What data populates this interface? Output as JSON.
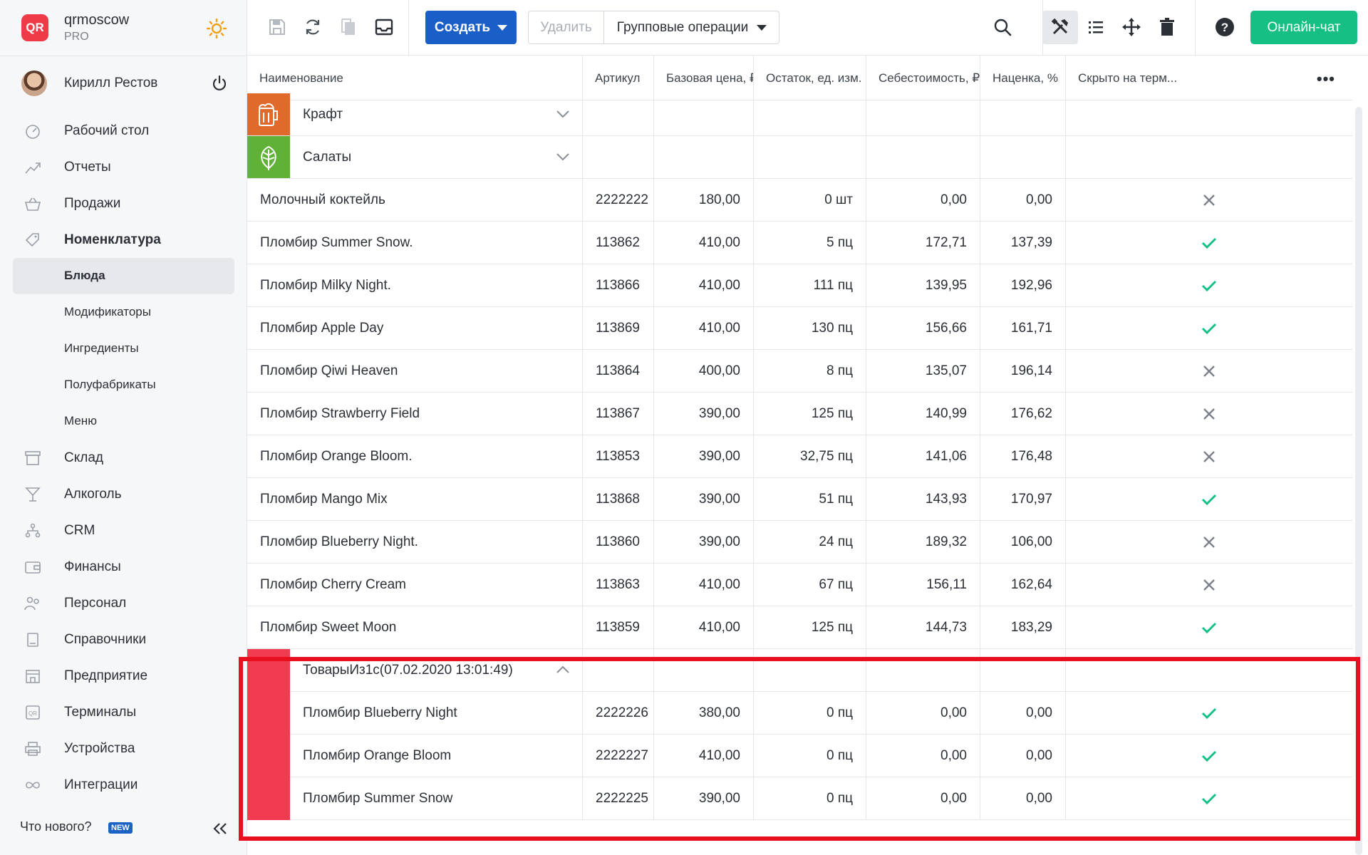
{
  "brand": {
    "logo": "QR",
    "name": "qrmoscow",
    "plan": "PRO"
  },
  "user": {
    "name": "Кирилл Рестов"
  },
  "nav": {
    "items": [
      {
        "label": "Рабочий стол",
        "icon": "dashboard-icon"
      },
      {
        "label": "Отчеты",
        "icon": "reports-icon"
      },
      {
        "label": "Продажи",
        "icon": "sales-basket-icon"
      },
      {
        "label": "Номенклатура",
        "icon": "tag-icon"
      }
    ],
    "sub_items": [
      {
        "label": "Блюда"
      },
      {
        "label": "Модификаторы"
      },
      {
        "label": "Ингредиенты"
      },
      {
        "label": "Полуфабрикаты"
      },
      {
        "label": "Меню"
      }
    ],
    "items_after": [
      {
        "label": "Склад",
        "icon": "warehouse-icon"
      },
      {
        "label": "Алкоголь",
        "icon": "cocktail-icon"
      },
      {
        "label": "CRM",
        "icon": "crm-hierarchy-icon"
      },
      {
        "label": "Финансы",
        "icon": "wallet-icon"
      },
      {
        "label": "Персонал",
        "icon": "staff-icon"
      },
      {
        "label": "Справочники",
        "icon": "book-icon"
      },
      {
        "label": "Предприятие",
        "icon": "enterprise-icon"
      },
      {
        "label": "Терминалы",
        "icon": "terminal-icon"
      },
      {
        "label": "Устройства",
        "icon": "printer-icon"
      },
      {
        "label": "Интеграции",
        "icon": "infinity-icon"
      }
    ],
    "whats_new": "Что нового?",
    "new_badge": "NEW"
  },
  "toolbar": {
    "create_label": "Создать",
    "delete_label": "Удалить",
    "bulk_label": "Групповые операции",
    "chat_label": "Онлайн-чат"
  },
  "table": {
    "headers": [
      "Наименование",
      "Артикул",
      "Базовая цена, ₽",
      "Остаток, ед. изм.",
      "Себестоимость, ₽",
      "Наценка, %",
      "Скрыто на терм..."
    ],
    "categories": [
      {
        "name": "Крафт",
        "color": "#e06a2b",
        "icon": "beer-mug-icon"
      },
      {
        "name": "Салаты",
        "color": "#5fb236",
        "icon": "salad-leaf-icon"
      }
    ],
    "rows": [
      {
        "name": "Молочный коктейль",
        "sku": "2222222",
        "price": "180,00",
        "stock": "0 шт",
        "cost": "0,00",
        "markup": "0,00",
        "hidden": false
      },
      {
        "name": "Пломбир Summer Snow.",
        "sku": "113862",
        "price": "410,00",
        "stock": "5 пц",
        "cost": "172,71",
        "markup": "137,39",
        "hidden": true
      },
      {
        "name": "Пломбир Milky Night.",
        "sku": "113866",
        "price": "410,00",
        "stock": "111 пц",
        "cost": "139,95",
        "markup": "192,96",
        "hidden": true
      },
      {
        "name": "Пломбир Apple Day",
        "sku": "113869",
        "price": "410,00",
        "stock": "130 пц",
        "cost": "156,66",
        "markup": "161,71",
        "hidden": true
      },
      {
        "name": "Пломбир Qiwi Heaven",
        "sku": "113864",
        "price": "400,00",
        "stock": "8 пц",
        "cost": "135,07",
        "markup": "196,14",
        "hidden": false
      },
      {
        "name": "Пломбир Strawberry Field",
        "sku": "113867",
        "price": "390,00",
        "stock": "125 пц",
        "cost": "140,99",
        "markup": "176,62",
        "hidden": false
      },
      {
        "name": "Пломбир Orange Bloom.",
        "sku": "113853",
        "price": "390,00",
        "stock": "32,75 пц",
        "cost": "141,06",
        "markup": "176,48",
        "hidden": false
      },
      {
        "name": "Пломбир Mango Mix",
        "sku": "113868",
        "price": "390,00",
        "stock": "51 пц",
        "cost": "143,93",
        "markup": "170,97",
        "hidden": true
      },
      {
        "name": "Пломбир Blueberry Night.",
        "sku": "113860",
        "price": "390,00",
        "stock": "24 пц",
        "cost": "189,32",
        "markup": "106,00",
        "hidden": false
      },
      {
        "name": "Пломбир Cherry Cream",
        "sku": "113863",
        "price": "410,00",
        "stock": "67 пц",
        "cost": "156,11",
        "markup": "162,64",
        "hidden": false
      },
      {
        "name": "Пломбир Sweet Moon",
        "sku": "113859",
        "price": "410,00",
        "stock": "125 пц",
        "cost": "144,73",
        "markup": "183,29",
        "hidden": true
      }
    ],
    "group": {
      "name": "ТоварыИз1с(07.02.2020 13:01:49)",
      "color": "#f23b50",
      "icon": "fork-knife-icon",
      "rows": [
        {
          "name": "Пломбир Blueberry Night",
          "sku": "2222226",
          "price": "380,00",
          "stock": "0 пц",
          "cost": "0,00",
          "markup": "0,00",
          "hidden": true
        },
        {
          "name": "Пломбир Orange Bloom",
          "sku": "2222227",
          "price": "410,00",
          "stock": "0 пц",
          "cost": "0,00",
          "markup": "0,00",
          "hidden": true
        },
        {
          "name": "Пломбир Summer Snow",
          "sku": "2222225",
          "price": "390,00",
          "stock": "0 пц",
          "cost": "0,00",
          "markup": "0,00",
          "hidden": true
        }
      ]
    }
  },
  "colors": {
    "accent": "#1a5fc8",
    "check": "#16bf83",
    "cross": "#7b8089",
    "highlight": "#e8101f",
    "chat": "#16bf83"
  }
}
